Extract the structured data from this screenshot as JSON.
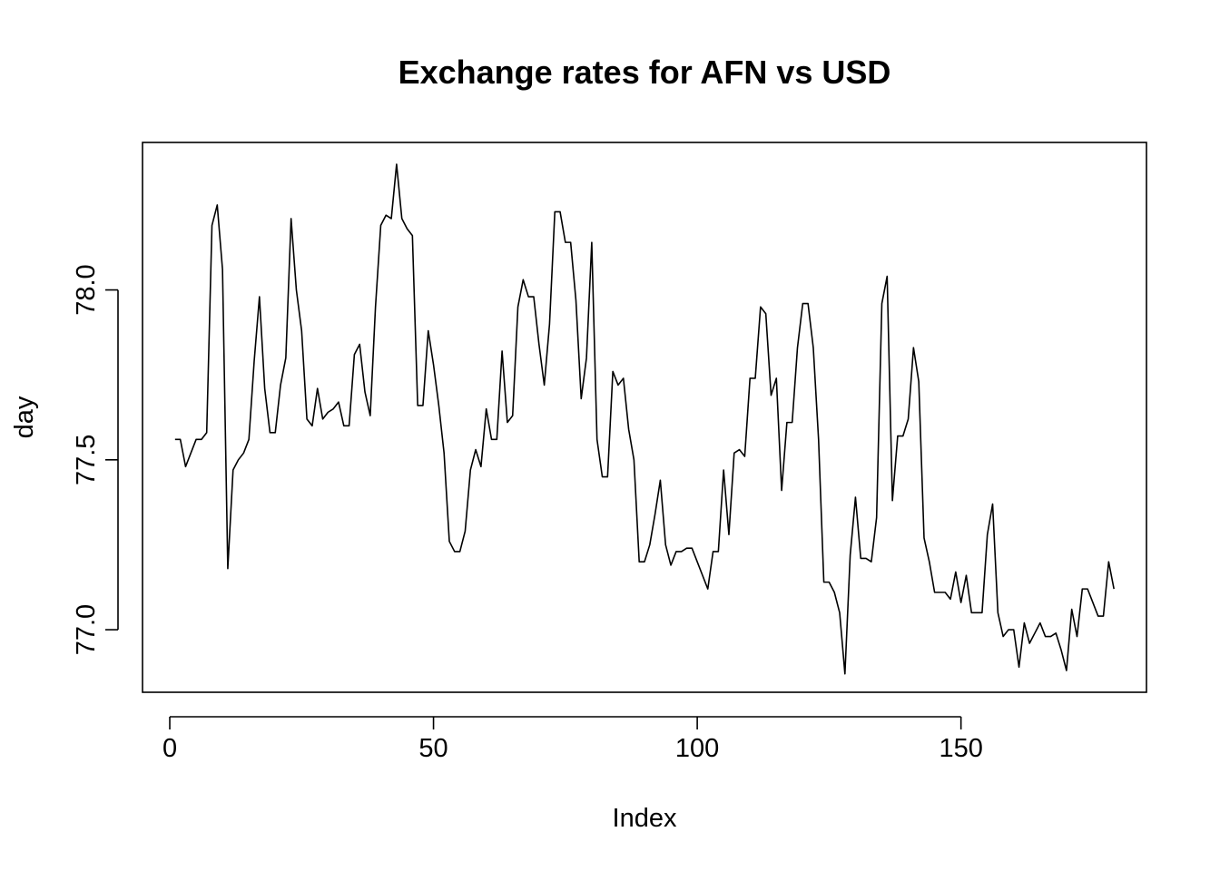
{
  "chart_data": {
    "type": "line",
    "title": "Exchange rates for AFN vs USD",
    "xlabel": "Index",
    "ylabel": "day",
    "xlim": [
      1,
      179
    ],
    "ylim": [
      76.88,
      78.37
    ],
    "x_ticks": [
      0,
      50,
      100,
      150
    ],
    "y_ticks": [
      77.0,
      77.5,
      78.0
    ],
    "x_tick_labels": [
      "0",
      "50",
      "100",
      "150"
    ],
    "y_tick_labels": [
      "77.0",
      "77.5",
      "78.0"
    ],
    "grid": false,
    "legend": "none",
    "line_color": "#000000",
    "series": [
      {
        "values": [
          77.56,
          77.56,
          77.48,
          77.52,
          77.56,
          77.56,
          77.58,
          78.19,
          78.25,
          78.06,
          77.18,
          77.47,
          77.5,
          77.52,
          77.56,
          77.79,
          77.98,
          77.71,
          77.58,
          77.58,
          77.72,
          77.8,
          78.21,
          78.0,
          77.88,
          77.62,
          77.6,
          77.71,
          77.62,
          77.64,
          77.65,
          77.67,
          77.6,
          77.6,
          77.81,
          77.84,
          77.7,
          77.63,
          77.95,
          78.19,
          78.22,
          78.21,
          78.37,
          78.21,
          78.18,
          78.16,
          77.66,
          77.66,
          77.88,
          77.78,
          77.66,
          77.52,
          77.26,
          77.23,
          77.23,
          77.29,
          77.47,
          77.53,
          77.48,
          77.65,
          77.56,
          77.56,
          77.82,
          77.61,
          77.63,
          77.95,
          78.03,
          77.98,
          77.98,
          77.84,
          77.72,
          77.9,
          78.23,
          78.23,
          78.14,
          78.14,
          77.97,
          77.68,
          77.8,
          78.14,
          77.56,
          77.45,
          77.45,
          77.76,
          77.72,
          77.74,
          77.59,
          77.5,
          77.2,
          77.2,
          77.25,
          77.34,
          77.44,
          77.25,
          77.19,
          77.23,
          77.23,
          77.24,
          77.24,
          77.2,
          77.16,
          77.12,
          77.23,
          77.23,
          77.47,
          77.28,
          77.52,
          77.53,
          77.51,
          77.74,
          77.74,
          77.95,
          77.93,
          77.69,
          77.74,
          77.41,
          77.61,
          77.61,
          77.83,
          77.96,
          77.96,
          77.83,
          77.56,
          77.14,
          77.14,
          77.11,
          77.05,
          76.87,
          77.22,
          77.39,
          77.21,
          77.21,
          77.2,
          77.33,
          77.96,
          78.04,
          77.38,
          77.57,
          77.57,
          77.62,
          77.83,
          77.73,
          77.27,
          77.2,
          77.11,
          77.11,
          77.11,
          77.09,
          77.17,
          77.08,
          77.16,
          77.05,
          77.05,
          77.05,
          77.28,
          77.37,
          77.05,
          76.98,
          77.0,
          77.0,
          76.89,
          77.02,
          76.96,
          76.99,
          77.02,
          76.98,
          76.98,
          76.99,
          76.94,
          76.88,
          77.06,
          76.98,
          77.12,
          77.12,
          77.08,
          77.04,
          77.04,
          77.2,
          77.12
        ]
      }
    ]
  }
}
